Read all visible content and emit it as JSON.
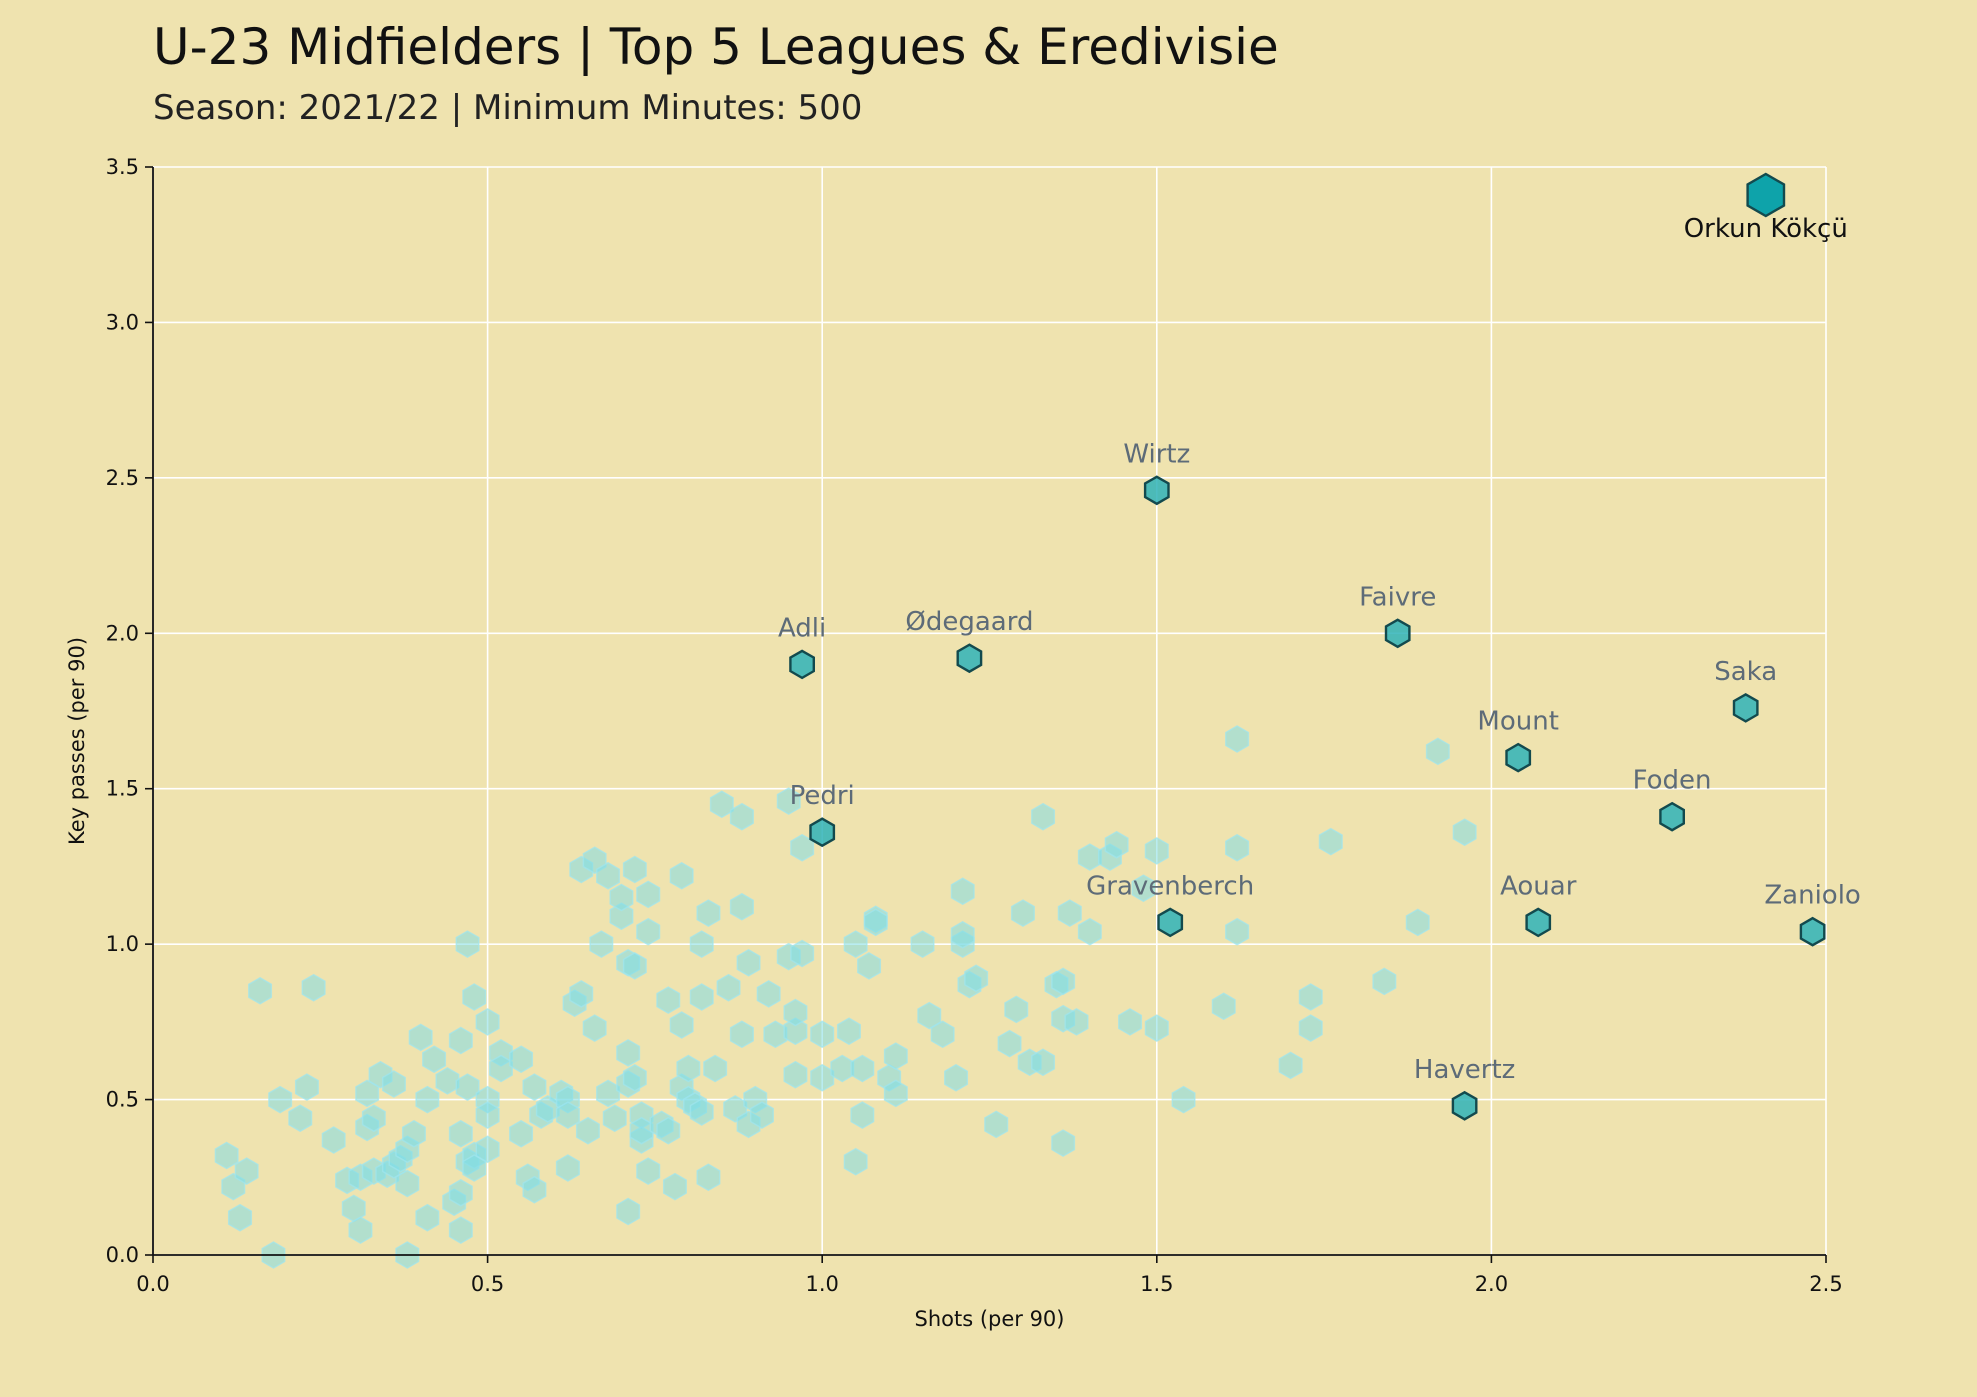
{
  "title": "U-23 Midfielders | Top 5 Leagues & Eredivisie",
  "subtitle": "Season: 2021/22 | Minimum Minutes: 500",
  "colors": {
    "background": "#efe3af",
    "background_points": "#7fdce6",
    "highlight_points": "#2fb3b8",
    "top_point": "#0ea3aa",
    "grid": "#ffffff"
  },
  "chart_data": {
    "type": "scatter",
    "marker": "hexagon",
    "xlabel": "Shots (per 90)",
    "ylabel": "Key passes (per 90)",
    "xlim": [
      0.0,
      2.5
    ],
    "ylim": [
      0.0,
      3.5
    ],
    "xticks": [
      "0.0",
      "0.5",
      "1.0",
      "1.5",
      "2.0",
      "2.5"
    ],
    "yticks": [
      "0.0",
      "0.5",
      "1.0",
      "1.5",
      "2.0",
      "2.5",
      "3.0",
      "3.5"
    ],
    "grid": true,
    "highlighted": [
      {
        "name": "Orkun Kökçü",
        "x": 2.41,
        "y": 3.41
      },
      {
        "name": "Wirtz",
        "x": 1.5,
        "y": 2.46
      },
      {
        "name": "Faivre",
        "x": 1.86,
        "y": 2.0
      },
      {
        "name": "Ødegaard",
        "x": 1.22,
        "y": 1.92
      },
      {
        "name": "Adli",
        "x": 0.97,
        "y": 1.9
      },
      {
        "name": "Saka",
        "x": 2.38,
        "y": 1.76
      },
      {
        "name": "Mount",
        "x": 2.04,
        "y": 1.6
      },
      {
        "name": "Foden",
        "x": 2.27,
        "y": 1.41
      },
      {
        "name": "Pedri",
        "x": 1.0,
        "y": 1.36
      },
      {
        "name": "Gravenberch",
        "x": 1.52,
        "y": 1.07
      },
      {
        "name": "Aouar",
        "x": 2.07,
        "y": 1.07
      },
      {
        "name": "Zaniolo",
        "x": 2.48,
        "y": 1.04
      },
      {
        "name": "Havertz",
        "x": 1.96,
        "y": 0.48
      }
    ],
    "others": [
      [
        0.11,
        0.32
      ],
      [
        0.12,
        0.22
      ],
      [
        0.13,
        0.12
      ],
      [
        0.14,
        0.27
      ],
      [
        0.16,
        0.85
      ],
      [
        0.18,
        0.0
      ],
      [
        0.19,
        0.5
      ],
      [
        0.22,
        0.44
      ],
      [
        0.23,
        0.54
      ],
      [
        0.24,
        0.86
      ],
      [
        0.27,
        0.37
      ],
      [
        0.29,
        0.24
      ],
      [
        0.3,
        0.15
      ],
      [
        0.31,
        0.08
      ],
      [
        0.31,
        0.25
      ],
      [
        0.32,
        0.41
      ],
      [
        0.32,
        0.52
      ],
      [
        0.33,
        0.27
      ],
      [
        0.33,
        0.44
      ],
      [
        0.34,
        0.58
      ],
      [
        0.35,
        0.26
      ],
      [
        0.36,
        0.55
      ],
      [
        0.36,
        0.29
      ],
      [
        0.37,
        0.31
      ],
      [
        0.38,
        0.34
      ],
      [
        0.38,
        0.0
      ],
      [
        0.38,
        0.23
      ],
      [
        0.39,
        0.39
      ],
      [
        0.4,
        0.7
      ],
      [
        0.41,
        0.12
      ],
      [
        0.41,
        0.5
      ],
      [
        0.42,
        0.63
      ],
      [
        0.44,
        0.56
      ],
      [
        0.45,
        0.17
      ],
      [
        0.46,
        0.2
      ],
      [
        0.46,
        0.08
      ],
      [
        0.46,
        0.69
      ],
      [
        0.46,
        0.39
      ],
      [
        0.47,
        0.3
      ],
      [
        0.47,
        0.54
      ],
      [
        0.47,
        1.0
      ],
      [
        0.48,
        0.83
      ],
      [
        0.48,
        0.32
      ],
      [
        0.48,
        0.28
      ],
      [
        0.5,
        0.5
      ],
      [
        0.5,
        0.75
      ],
      [
        0.5,
        0.34
      ],
      [
        0.5,
        0.45
      ],
      [
        0.52,
        0.65
      ],
      [
        0.52,
        0.6
      ],
      [
        0.55,
        0.39
      ],
      [
        0.55,
        0.63
      ],
      [
        0.56,
        0.25
      ],
      [
        0.57,
        0.21
      ],
      [
        0.57,
        0.54
      ],
      [
        0.58,
        0.45
      ],
      [
        0.59,
        0.47
      ],
      [
        0.61,
        0.52
      ],
      [
        0.62,
        0.5
      ],
      [
        0.62,
        0.45
      ],
      [
        0.62,
        0.28
      ],
      [
        0.63,
        0.81
      ],
      [
        0.64,
        0.84
      ],
      [
        0.64,
        1.24
      ],
      [
        0.65,
        0.4
      ],
      [
        0.66,
        0.73
      ],
      [
        0.66,
        1.27
      ],
      [
        0.67,
        1.0
      ],
      [
        0.68,
        0.52
      ],
      [
        0.68,
        1.22
      ],
      [
        0.69,
        0.44
      ],
      [
        0.7,
        1.09
      ],
      [
        0.7,
        1.15
      ],
      [
        0.71,
        0.55
      ],
      [
        0.71,
        0.65
      ],
      [
        0.71,
        0.94
      ],
      [
        0.71,
        0.14
      ],
      [
        0.72,
        0.93
      ],
      [
        0.72,
        1.24
      ],
      [
        0.72,
        0.57
      ],
      [
        0.73,
        0.45
      ],
      [
        0.73,
        0.37
      ],
      [
        0.73,
        0.4
      ],
      [
        0.74,
        0.27
      ],
      [
        0.74,
        1.04
      ],
      [
        0.74,
        1.16
      ],
      [
        0.76,
        0.42
      ],
      [
        0.77,
        0.4
      ],
      [
        0.77,
        0.82
      ],
      [
        0.78,
        0.22
      ],
      [
        0.79,
        0.54
      ],
      [
        0.79,
        0.74
      ],
      [
        0.79,
        1.22
      ],
      [
        0.8,
        0.5
      ],
      [
        0.8,
        0.6
      ],
      [
        0.81,
        0.48
      ],
      [
        0.82,
        1.0
      ],
      [
        0.82,
        0.83
      ],
      [
        0.82,
        0.46
      ],
      [
        0.83,
        1.1
      ],
      [
        0.83,
        0.25
      ],
      [
        0.84,
        0.6
      ],
      [
        0.85,
        1.45
      ],
      [
        0.86,
        0.86
      ],
      [
        0.87,
        0.47
      ],
      [
        0.88,
        1.12
      ],
      [
        0.88,
        0.71
      ],
      [
        0.88,
        1.41
      ],
      [
        0.89,
        0.94
      ],
      [
        0.89,
        0.42
      ],
      [
        0.9,
        0.5
      ],
      [
        0.91,
        0.45
      ],
      [
        0.92,
        0.84
      ],
      [
        0.93,
        0.71
      ],
      [
        0.95,
        0.96
      ],
      [
        0.95,
        1.46
      ],
      [
        0.96,
        0.72
      ],
      [
        0.96,
        0.58
      ],
      [
        0.96,
        0.78
      ],
      [
        0.97,
        0.97
      ],
      [
        0.97,
        1.31
      ],
      [
        1.0,
        0.71
      ],
      [
        1.0,
        0.57
      ],
      [
        1.03,
        0.6
      ],
      [
        1.04,
        0.72
      ],
      [
        1.05,
        0.3
      ],
      [
        1.05,
        1.0
      ],
      [
        1.06,
        0.45
      ],
      [
        1.06,
        0.6
      ],
      [
        1.07,
        0.93
      ],
      [
        1.08,
        1.08
      ],
      [
        1.08,
        1.07
      ],
      [
        1.1,
        0.57
      ],
      [
        1.11,
        0.52
      ],
      [
        1.11,
        0.64
      ],
      [
        1.15,
        1.0
      ],
      [
        1.16,
        0.77
      ],
      [
        1.18,
        0.71
      ],
      [
        1.2,
        0.57
      ],
      [
        1.21,
        1.0
      ],
      [
        1.21,
        1.17
      ],
      [
        1.21,
        1.03
      ],
      [
        1.22,
        0.87
      ],
      [
        1.23,
        0.89
      ],
      [
        1.26,
        0.42
      ],
      [
        1.28,
        0.68
      ],
      [
        1.29,
        0.79
      ],
      [
        1.3,
        1.1
      ],
      [
        1.31,
        0.62
      ],
      [
        1.33,
        0.62
      ],
      [
        1.33,
        1.41
      ],
      [
        1.35,
        0.87
      ],
      [
        1.36,
        0.88
      ],
      [
        1.36,
        0.76
      ],
      [
        1.36,
        0.36
      ],
      [
        1.37,
        1.1
      ],
      [
        1.38,
        0.75
      ],
      [
        1.4,
        1.04
      ],
      [
        1.4,
        1.28
      ],
      [
        1.43,
        1.28
      ],
      [
        1.44,
        1.32
      ],
      [
        1.46,
        0.75
      ],
      [
        1.48,
        1.18
      ],
      [
        1.5,
        1.3
      ],
      [
        1.5,
        0.73
      ],
      [
        1.54,
        0.5
      ],
      [
        1.6,
        0.8
      ],
      [
        1.62,
        1.31
      ],
      [
        1.62,
        1.66
      ],
      [
        1.62,
        1.04
      ],
      [
        1.7,
        0.61
      ],
      [
        1.73,
        0.83
      ],
      [
        1.73,
        0.73
      ],
      [
        1.76,
        1.33
      ],
      [
        1.84,
        0.88
      ],
      [
        1.89,
        1.07
      ],
      [
        1.92,
        1.62
      ],
      [
        1.96,
        1.36
      ]
    ]
  }
}
